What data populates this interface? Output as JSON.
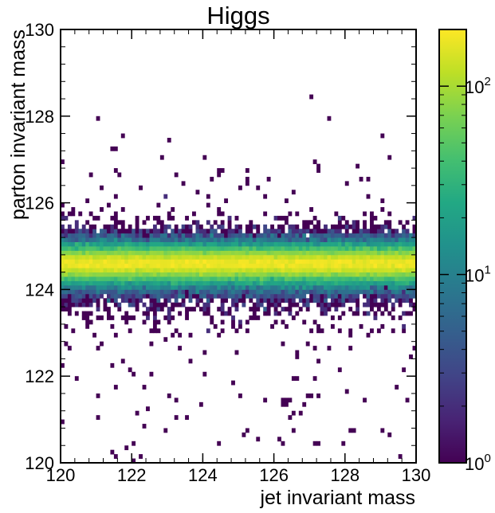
{
  "chart_data": {
    "type": "heatmap",
    "title": "Higgs",
    "xlabel": "jet invariant mass",
    "ylabel": "parton invariant mass",
    "xlim": [
      120,
      130
    ],
    "ylim": [
      120,
      130
    ],
    "x_ticks": [
      "120",
      "122",
      "124",
      "126",
      "128",
      "130"
    ],
    "y_ticks": [
      "120",
      "122",
      "124",
      "126",
      "128",
      "130"
    ],
    "bins": {
      "x": 100,
      "y": 100
    },
    "color_scale": "log",
    "colormap": "viridis",
    "colorbar_range": [
      1,
      200
    ],
    "colorbar_ticks": [
      {
        "value": 1,
        "base": "10",
        "exp": "0"
      },
      {
        "value": 10,
        "base": "10",
        "exp": "1"
      },
      {
        "value": 100,
        "base": "10",
        "exp": "2"
      }
    ],
    "y_profile": {
      "peak_mass": 124.6,
      "peak_count": 200,
      "y_mass": [
        122.0,
        123.0,
        123.4,
        123.7,
        124.0,
        124.2,
        124.4,
        124.6,
        124.8,
        125.0,
        125.2,
        125.4,
        125.6,
        126.0,
        127.0,
        128.5
      ],
      "mean_count": [
        0.02,
        0.1,
        0.4,
        1.2,
        8,
        30,
        110,
        200,
        110,
        30,
        6,
        1.2,
        0.4,
        0.05,
        0.02,
        0.01
      ]
    },
    "isolated_bins": [
      [
        120.1,
        122.2
      ],
      [
        120.4,
        121.9
      ],
      [
        121.6,
        121.7
      ],
      [
        122.1,
        122.1
      ],
      [
        122.4,
        121.2
      ],
      [
        122.6,
        122.0
      ],
      [
        123.1,
        121.6
      ],
      [
        123.2,
        121.1
      ],
      [
        124.0,
        122.1
      ],
      [
        125.8,
        121.4
      ],
      [
        126.5,
        121.9
      ],
      [
        126.4,
        121.0
      ],
      [
        126.6,
        120.8
      ],
      [
        127.0,
        121.5
      ],
      [
        128.6,
        121.4
      ],
      [
        129.4,
        121.7
      ],
      [
        120.1,
        126.9
      ],
      [
        121.0,
        127.9
      ],
      [
        121.5,
        127.3
      ],
      [
        121.8,
        127.6
      ],
      [
        124.0,
        127.0
      ],
      [
        125.3,
        126.6
      ],
      [
        125.3,
        126.4
      ],
      [
        127.0,
        128.4
      ],
      [
        127.6,
        127.9
      ],
      [
        127.3,
        126.7
      ],
      [
        128.7,
        126.6
      ],
      [
        126.6,
        126.3
      ],
      [
        122.6,
        122.8
      ],
      [
        124.4,
        122.9
      ],
      [
        126.2,
        122.8
      ],
      [
        128.2,
        122.9
      ],
      [
        123.3,
        123.1
      ],
      [
        127.0,
        123.0
      ]
    ],
    "colors": {
      "vmin": "#440154",
      "vmid": "#21918c",
      "vmax": "#fde725",
      "frame": "#000000"
    }
  }
}
